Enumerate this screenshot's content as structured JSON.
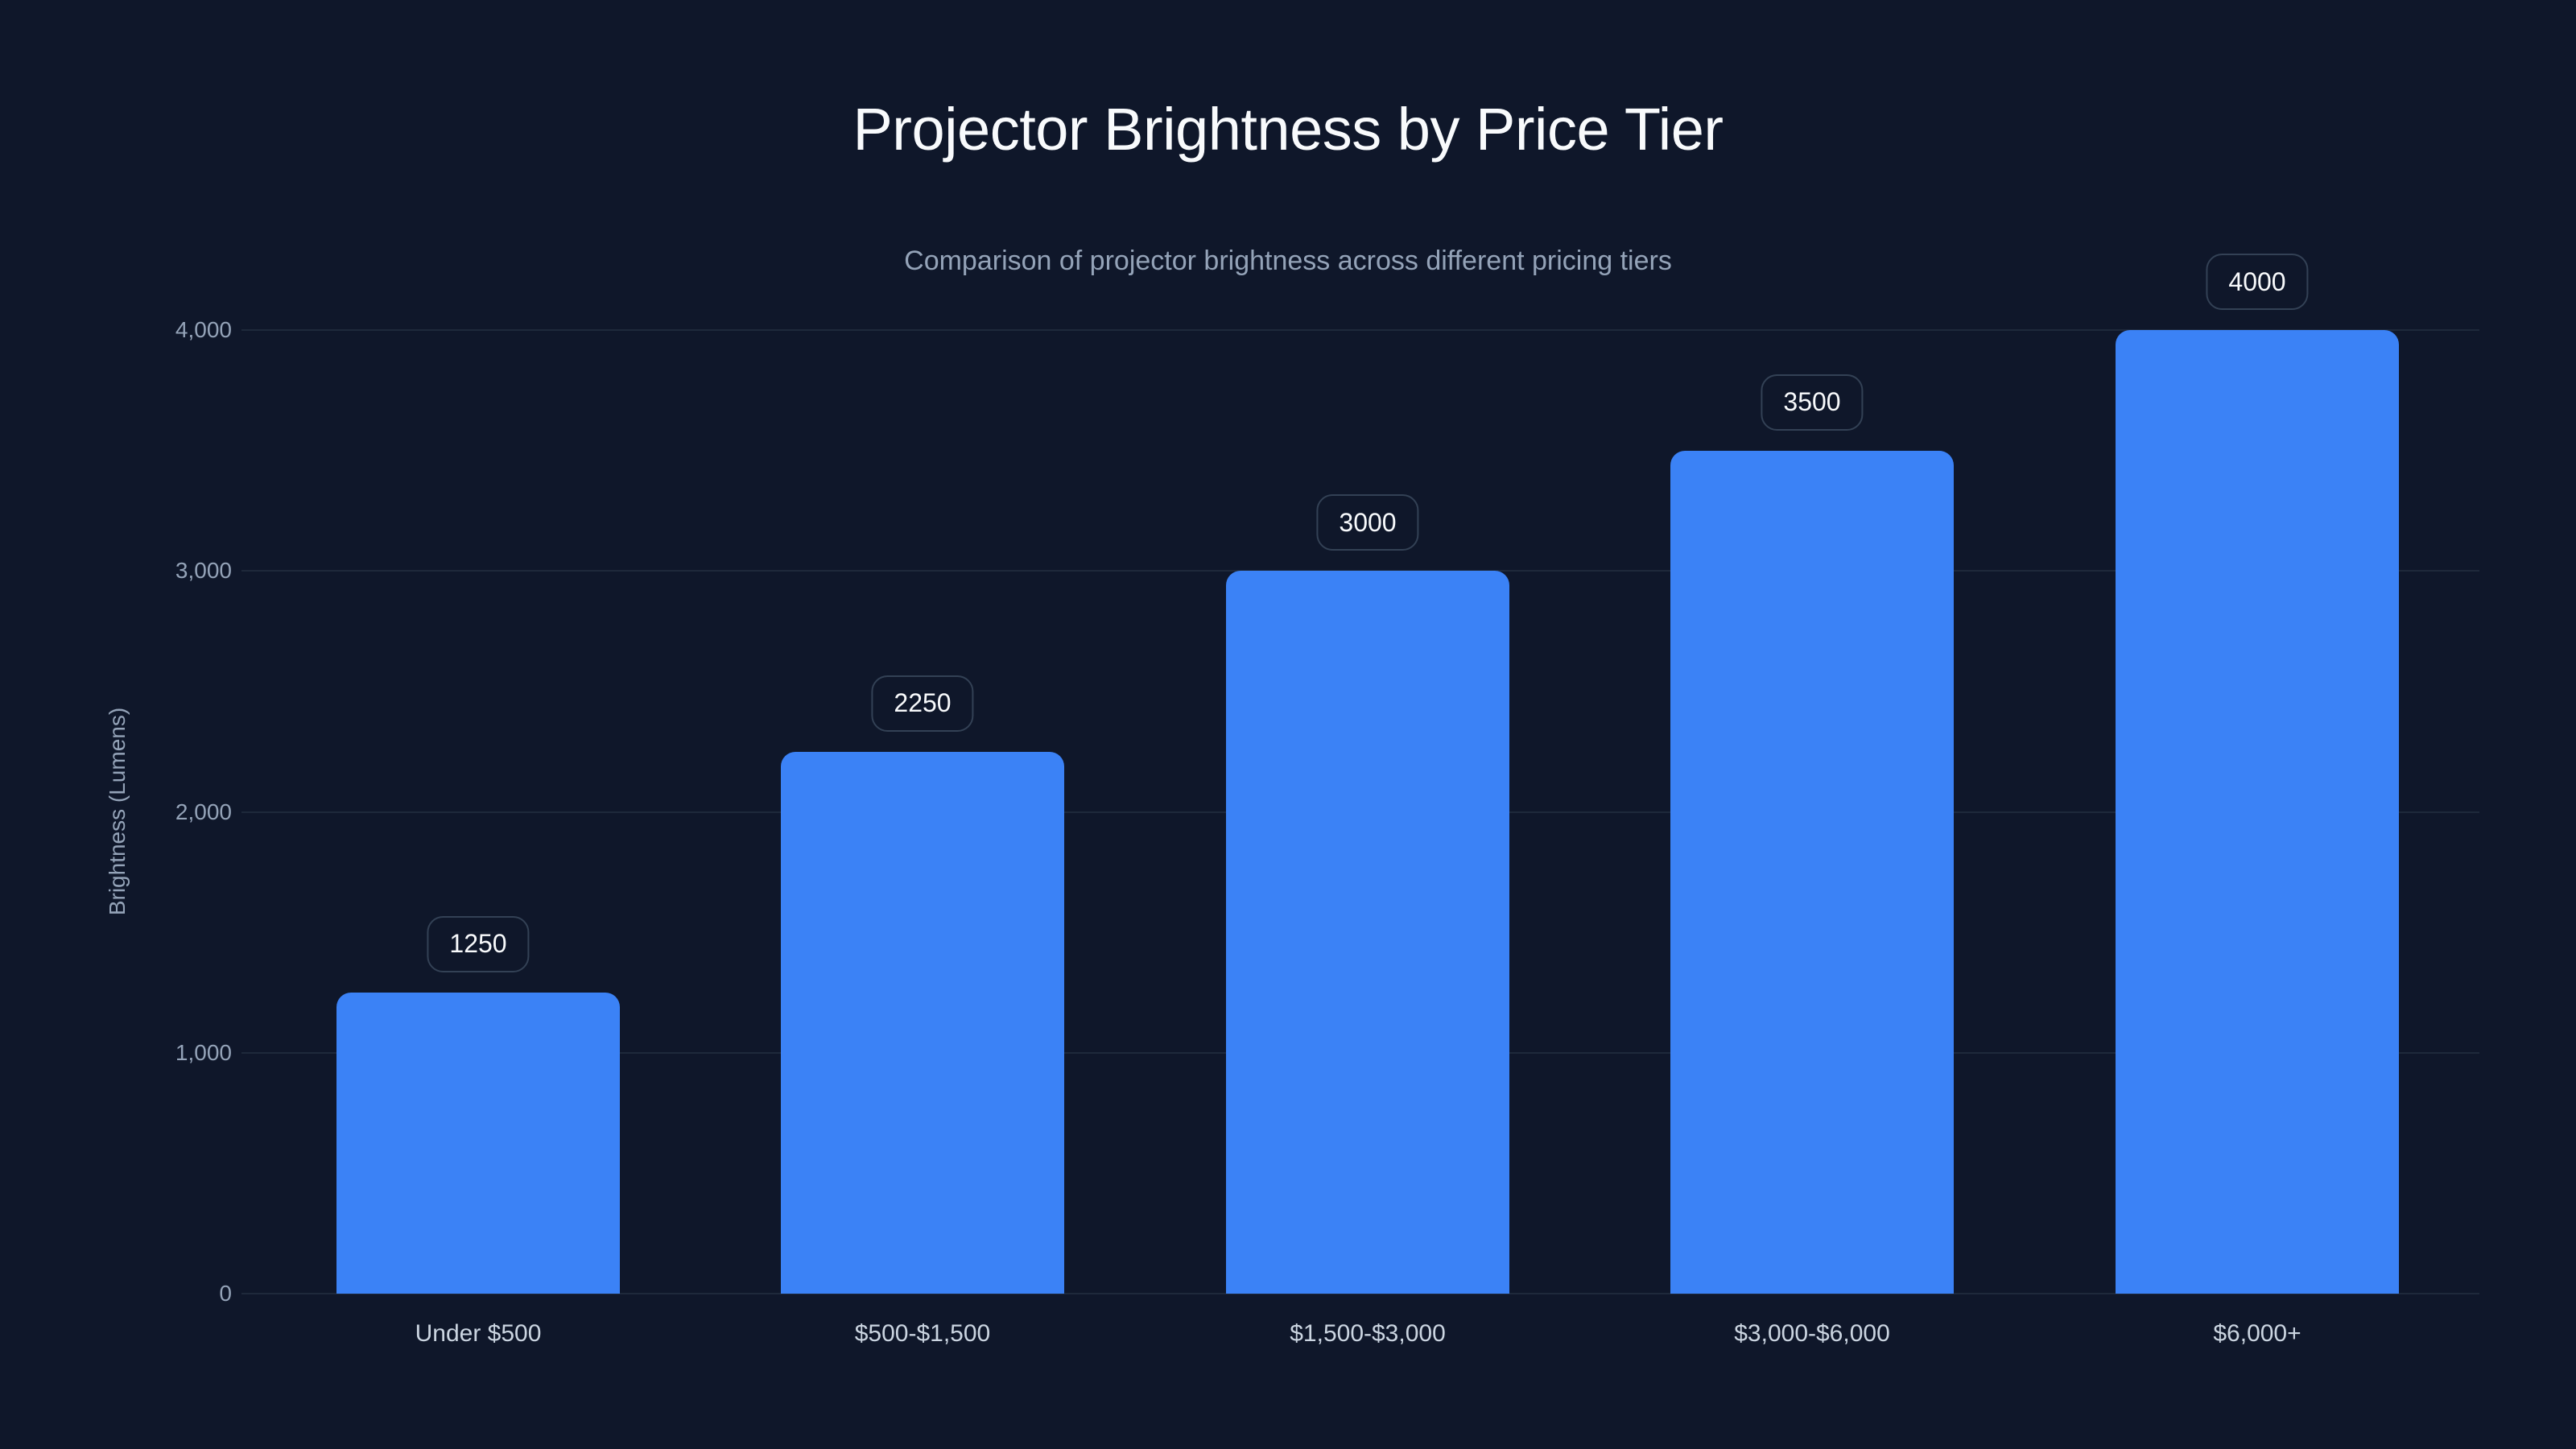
{
  "header": {
    "title": "Projector Brightness by Price Tier",
    "subtitle": "Comparison of projector brightness across different pricing tiers"
  },
  "axes": {
    "ylabel": "Brightness (Lumens)",
    "yticks": [
      "0",
      "1,000",
      "2,000",
      "3,000",
      "4,000"
    ]
  },
  "bars": [
    {
      "category": "Under $500",
      "value": 1250,
      "label": "1250"
    },
    {
      "category": "$500-$1,500",
      "value": 2250,
      "label": "2250"
    },
    {
      "category": "$1,500-$3,000",
      "value": 3000,
      "label": "3000"
    },
    {
      "category": "$3,000-$6,000",
      "value": 3500,
      "label": "3500"
    },
    {
      "category": "$6,000+",
      "value": 4000,
      "label": "4000"
    }
  ],
  "colors": {
    "background": "#0f172a",
    "bar": "#3b82f6",
    "grid": "#1e293b",
    "label_border": "#334155"
  },
  "chart_data": {
    "type": "bar",
    "title": "Projector Brightness by Price Tier",
    "subtitle": "Comparison of projector brightness across different pricing tiers",
    "categories": [
      "Under $500",
      "$500-$1,500",
      "$1,500-$3,000",
      "$3,000-$6,000",
      "$6,000+"
    ],
    "values": [
      1250,
      2250,
      3000,
      3500,
      4000
    ],
    "xlabel": "",
    "ylabel": "Brightness (Lumens)",
    "ylim": [
      0,
      4000
    ],
    "yticks": [
      0,
      1000,
      2000,
      3000,
      4000
    ],
    "grid": true,
    "legend": null,
    "data_labels": true
  }
}
